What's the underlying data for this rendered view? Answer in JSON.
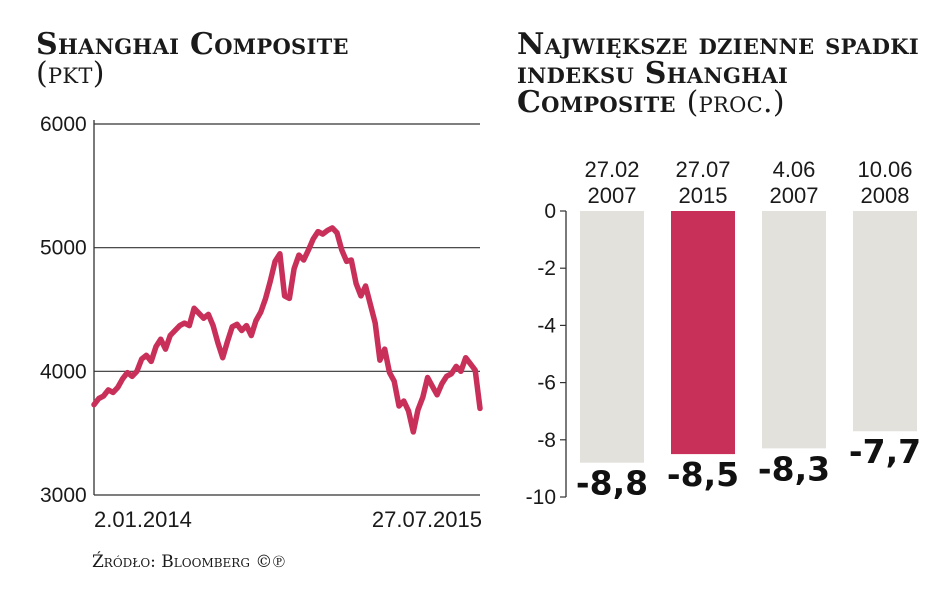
{
  "left_chart": {
    "title": "Shanghai Composite",
    "unit": "(pkt)",
    "chart_data": {
      "type": "line",
      "title": "Shanghai Composite",
      "ylabel": "(pkt)",
      "x_start_label": "2.01.2014",
      "x_end_label": "27.07.2015",
      "ylim": [
        3000,
        6000
      ],
      "yticks": [
        "6000",
        "5000",
        "4000",
        "3000"
      ],
      "grid": true,
      "color": "#c8305a",
      "values": [
        3730,
        3780,
        3800,
        3850,
        3830,
        3870,
        3940,
        3990,
        3960,
        4000,
        4100,
        4130,
        4080,
        4200,
        4260,
        4180,
        4290,
        4330,
        4370,
        4390,
        4370,
        4510,
        4470,
        4430,
        4460,
        4370,
        4230,
        4110,
        4240,
        4360,
        4380,
        4330,
        4370,
        4290,
        4410,
        4480,
        4590,
        4730,
        4890,
        4950,
        4610,
        4590,
        4830,
        4940,
        4900,
        4980,
        5070,
        5130,
        5110,
        5140,
        5160,
        5120,
        4980,
        4890,
        4900,
        4710,
        4610,
        4690,
        4540,
        4390,
        4090,
        4180,
        3990,
        3920,
        3720,
        3760,
        3680,
        3510,
        3690,
        3790,
        3950,
        3880,
        3810,
        3900,
        3960,
        3980,
        4040,
        4000,
        4110,
        4060,
        4010,
        3700
      ]
    }
  },
  "right_chart": {
    "title": "Największe dzienne spadki indeksu Shanghai Composite",
    "unit": "(proc.)",
    "chart_data": {
      "type": "bar",
      "title": "Największe dzienne spadki indeksu Shanghai Composite",
      "ylabel": "(proc.)",
      "categories": [
        "27.02 2007",
        "27.07 2015",
        "4.06 2007",
        "10.06 2008"
      ],
      "category_lines": [
        [
          "27.02",
          "2007"
        ],
        [
          "27.07",
          "2015"
        ],
        [
          "4.06",
          "2007"
        ],
        [
          "10.06",
          "2008"
        ]
      ],
      "values": [
        -8.8,
        -8.5,
        -8.3,
        -7.7
      ],
      "value_labels": [
        "-8,8",
        "-8,5",
        "-8,3",
        "-7,7"
      ],
      "ylim": [
        -10,
        0
      ],
      "yticks": [
        "0",
        "-2",
        "-4",
        "-6",
        "-8",
        "-10"
      ],
      "colors": [
        "#e2e1dc",
        "#c8305a",
        "#e2e1dc",
        "#e2e1dc"
      ]
    }
  },
  "source": "Źródło: Bloomberg ©℗"
}
